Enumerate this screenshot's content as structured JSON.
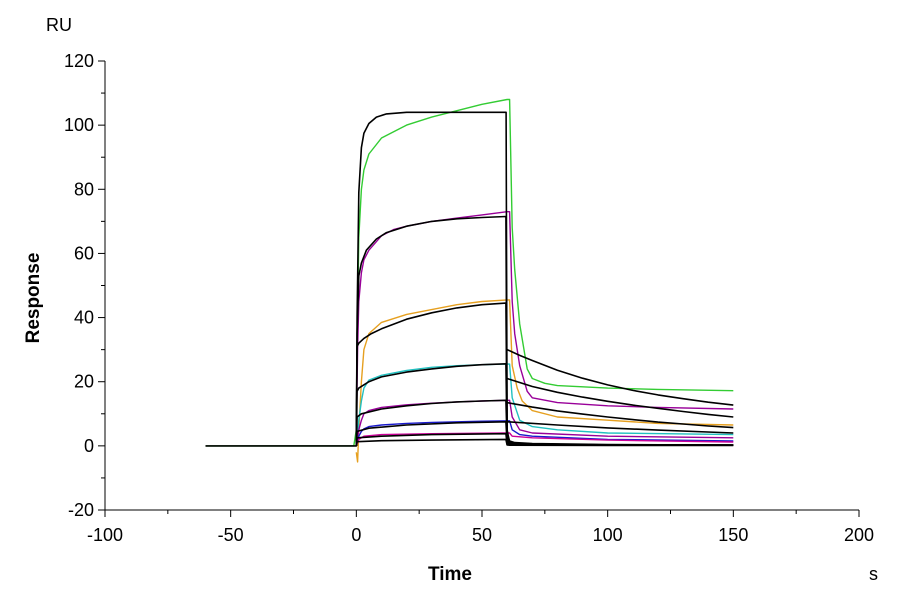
{
  "chart_data": {
    "type": "line",
    "title": "",
    "xlabel": "Time",
    "ylabel": "Response",
    "x_unit": "s",
    "y_unit": "RU",
    "xlim": [
      -100,
      200
    ],
    "ylim": [
      -20,
      120
    ],
    "x_ticks": [
      -100,
      -50,
      0,
      50,
      100,
      150,
      200
    ],
    "y_ticks": [
      -20,
      0,
      20,
      40,
      60,
      80,
      100,
      120
    ],
    "grid": false,
    "legend": "none",
    "series": [
      {
        "color": "#33cc33",
        "kind": "measured",
        "x": [
          -60,
          -20,
          -1,
          0,
          0.5,
          1,
          2,
          3,
          5,
          10,
          20,
          30,
          40,
          50,
          60,
          61,
          62,
          63,
          65,
          68,
          70,
          75,
          80,
          100,
          120,
          150
        ],
        "y": [
          0,
          0,
          0,
          5,
          40,
          65,
          80,
          86,
          91,
          96,
          100,
          102.5,
          104.5,
          106.5,
          108,
          108,
          68,
          55,
          38,
          24,
          21,
          19.5,
          18.8,
          18,
          17.6,
          17.2
        ]
      },
      {
        "color": "#000000",
        "kind": "fit",
        "x": [
          -60,
          0,
          0.3,
          1,
          2,
          3,
          5,
          8,
          12,
          20,
          30,
          40,
          59.5,
          59.6,
          60,
          61,
          63,
          70,
          100,
          150
        ],
        "y": [
          0,
          0,
          40,
          79,
          93,
          97.5,
          100.5,
          102.5,
          103.5,
          104,
          104,
          104,
          104,
          104,
          5,
          1,
          0.7,
          0.5,
          0.3,
          0.2
        ]
      },
      {
        "color": "#990099",
        "kind": "measured",
        "x": [
          0,
          0.5,
          1,
          2,
          3,
          5,
          10,
          15,
          20,
          30,
          40,
          50,
          60,
          61,
          62,
          63,
          65,
          68,
          70,
          80,
          100,
          120,
          150
        ],
        "y": [
          2,
          30,
          45,
          54,
          58,
          61,
          65.5,
          67.5,
          68.5,
          70,
          71,
          72,
          73,
          73,
          45,
          35,
          25,
          17,
          15,
          13.5,
          12.5,
          12,
          11.5
        ]
      },
      {
        "color": "#000000",
        "kind": "fit",
        "x": [
          0,
          0.3,
          1,
          2,
          4,
          8,
          12,
          20,
          30,
          40,
          50,
          59.5,
          60,
          61,
          63,
          70,
          100,
          150
        ],
        "y": [
          0,
          35,
          53,
          57,
          61,
          64.5,
          66.5,
          68.5,
          70,
          70.8,
          71.2,
          71.5,
          4,
          1.5,
          1,
          0.7,
          0.4,
          0.2
        ]
      },
      {
        "color": "#e6a020",
        "kind": "measured",
        "x": [
          0,
          0.5,
          1,
          2,
          3,
          5,
          10,
          20,
          30,
          40,
          50,
          60,
          61,
          62,
          64,
          66,
          70,
          80,
          100,
          120,
          150
        ],
        "y": [
          -2,
          -5,
          5,
          20,
          30,
          35,
          38.5,
          41,
          42.5,
          44,
          45,
          45.5,
          45.5,
          25,
          18,
          14,
          11,
          9,
          8,
          7,
          6.5
        ]
      },
      {
        "color": "#000000",
        "kind": "fit",
        "x": [
          0,
          0.3,
          1,
          3,
          6,
          10,
          20,
          30,
          40,
          50,
          59.5,
          60,
          61,
          63,
          70,
          100,
          150
        ],
        "y": [
          0,
          31,
          32,
          33.5,
          35,
          36.5,
          39.5,
          41.5,
          43,
          44,
          44.5,
          3,
          1,
          0.8,
          0.6,
          0.3,
          0.2
        ]
      },
      {
        "color": "#22c0c0",
        "kind": "measured",
        "x": [
          0,
          1,
          2,
          3,
          5,
          10,
          20,
          30,
          40,
          50,
          60,
          61,
          62,
          65,
          70,
          80,
          100,
          150
        ],
        "y": [
          0,
          8,
          14,
          18,
          20.5,
          22,
          23.5,
          24.5,
          25,
          25.3,
          25.5,
          25.5,
          15,
          8,
          6,
          5,
          4,
          3.5
        ]
      },
      {
        "color": "#000000",
        "kind": "fit",
        "x": [
          0,
          0.3,
          1,
          5,
          10,
          20,
          30,
          40,
          50,
          59.5,
          60,
          61,
          63,
          70,
          100,
          150
        ],
        "y": [
          0,
          17,
          18,
          20,
          21.5,
          23,
          24,
          24.8,
          25.3,
          25.6,
          2,
          1,
          0.8,
          0.6,
          0.3,
          0.2
        ]
      },
      {
        "color": "#990099",
        "kind": "measured",
        "x": [
          0,
          1,
          2,
          3,
          5,
          10,
          20,
          30,
          40,
          50,
          60,
          61,
          62,
          65,
          70,
          100,
          150
        ],
        "y": [
          0,
          5,
          8,
          10,
          11,
          12,
          12.8,
          13.3,
          13.7,
          14,
          14.2,
          14.2,
          9,
          5,
          4,
          3,
          2.5
        ]
      },
      {
        "color": "#000000",
        "kind": "fit",
        "x": [
          0,
          0.3,
          2,
          10,
          20,
          30,
          40,
          50,
          59.5,
          60,
          61,
          63,
          70,
          100,
          150
        ],
        "y": [
          0,
          9,
          10,
          11.5,
          12.5,
          13.2,
          13.7,
          14,
          14.2,
          1.5,
          0.8,
          0.6,
          0.5,
          0.3,
          0.2
        ]
      },
      {
        "color": "#1a1acc",
        "kind": "measured",
        "x": [
          0,
          1,
          2,
          3,
          5,
          10,
          20,
          30,
          40,
          50,
          60,
          61,
          62,
          65,
          70,
          100,
          150
        ],
        "y": [
          0,
          3,
          4.5,
          5.3,
          6,
          6.5,
          7,
          7.3,
          7.5,
          7.7,
          7.8,
          7.8,
          5,
          3.5,
          3,
          2,
          1.5
        ]
      },
      {
        "color": "#000000",
        "kind": "fit",
        "x": [
          0,
          0.3,
          5,
          20,
          40,
          59.5,
          60,
          61,
          63,
          100,
          150
        ],
        "y": [
          0,
          4.5,
          5.5,
          6.5,
          7.2,
          7.5,
          1,
          0.6,
          0.5,
          0.3,
          0.2
        ]
      },
      {
        "color": "#cc0099",
        "kind": "measured",
        "x": [
          0,
          1,
          3,
          10,
          30,
          60,
          61,
          62,
          70,
          100,
          150
        ],
        "y": [
          0,
          2,
          3,
          3.5,
          3.8,
          4,
          4,
          3,
          2.5,
          1.8,
          1.2
        ]
      },
      {
        "color": "#000000",
        "kind": "fit",
        "x": [
          0,
          0.3,
          10,
          30,
          59.5,
          60,
          61,
          100,
          150
        ],
        "y": [
          0,
          2.5,
          3,
          3.5,
          3.8,
          0.5,
          0.4,
          0.3,
          0.2
        ]
      },
      {
        "color": "#000000",
        "kind": "fit",
        "x": [
          0,
          0.3,
          10,
          30,
          59.5,
          60,
          61,
          100,
          150
        ],
        "y": [
          0,
          1.3,
          1.6,
          1.8,
          2,
          0.3,
          0.2,
          0.15,
          0.1
        ]
      },
      {
        "color": "#000000",
        "kind": "fit",
        "x": [
          60,
          65,
          70,
          80,
          90,
          100,
          110,
          120,
          130,
          140,
          150
        ],
        "y": [
          30,
          28.2,
          26.6,
          23.6,
          21.1,
          19,
          17.3,
          15.9,
          14.7,
          13.6,
          12.7
        ]
      },
      {
        "color": "#000000",
        "kind": "fit",
        "x": [
          60,
          70,
          80,
          90,
          100,
          110,
          120,
          130,
          140,
          150
        ],
        "y": [
          21,
          18.5,
          16.7,
          15.2,
          13.9,
          12.7,
          11.7,
          10.7,
          9.8,
          9
        ]
      },
      {
        "color": "#000000",
        "kind": "fit",
        "x": [
          60,
          70,
          80,
          90,
          100,
          110,
          120,
          130,
          140,
          150
        ],
        "y": [
          13.5,
          12.1,
          10.9,
          9.9,
          9,
          8.2,
          7.4,
          6.8,
          6.2,
          5.7
        ]
      },
      {
        "color": "#000000",
        "kind": "fit",
        "x": [
          60,
          80,
          100,
          120,
          150
        ],
        "y": [
          7.5,
          6.5,
          5.6,
          4.9,
          4
        ]
      }
    ]
  }
}
